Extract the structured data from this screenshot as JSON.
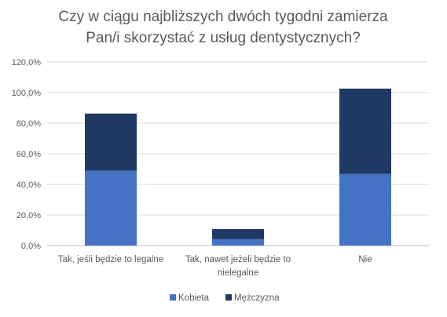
{
  "chart_data": {
    "type": "bar",
    "stacked": true,
    "title_lines": [
      "Czy w ciągu najbliższych dwóch tygodni zamierza",
      "Pan/i skorzystać z usług dentystycznych?"
    ],
    "categories": [
      [
        "Tak, jeśli będzie to legalne"
      ],
      [
        "Tak, nawet jeżeli będzie to",
        "nielegalne"
      ],
      [
        "Nie"
      ]
    ],
    "series": [
      {
        "name": "Kobieta",
        "color": "#4472c4",
        "values": [
          48.9,
          4.2,
          46.8
        ]
      },
      {
        "name": "Mężczyzna",
        "color": "#203864",
        "values": [
          37.4,
          6.6,
          55.8
        ]
      }
    ],
    "ylim": [
      0,
      120
    ],
    "yticks": [
      "0,0%",
      "20,0%",
      "40,0%",
      "60,0%",
      "80,0%",
      "100,0%",
      "120,0%"
    ],
    "ytick_values": [
      0,
      20,
      40,
      60,
      80,
      100,
      120
    ],
    "grid": true,
    "legend_position": "bottom"
  }
}
